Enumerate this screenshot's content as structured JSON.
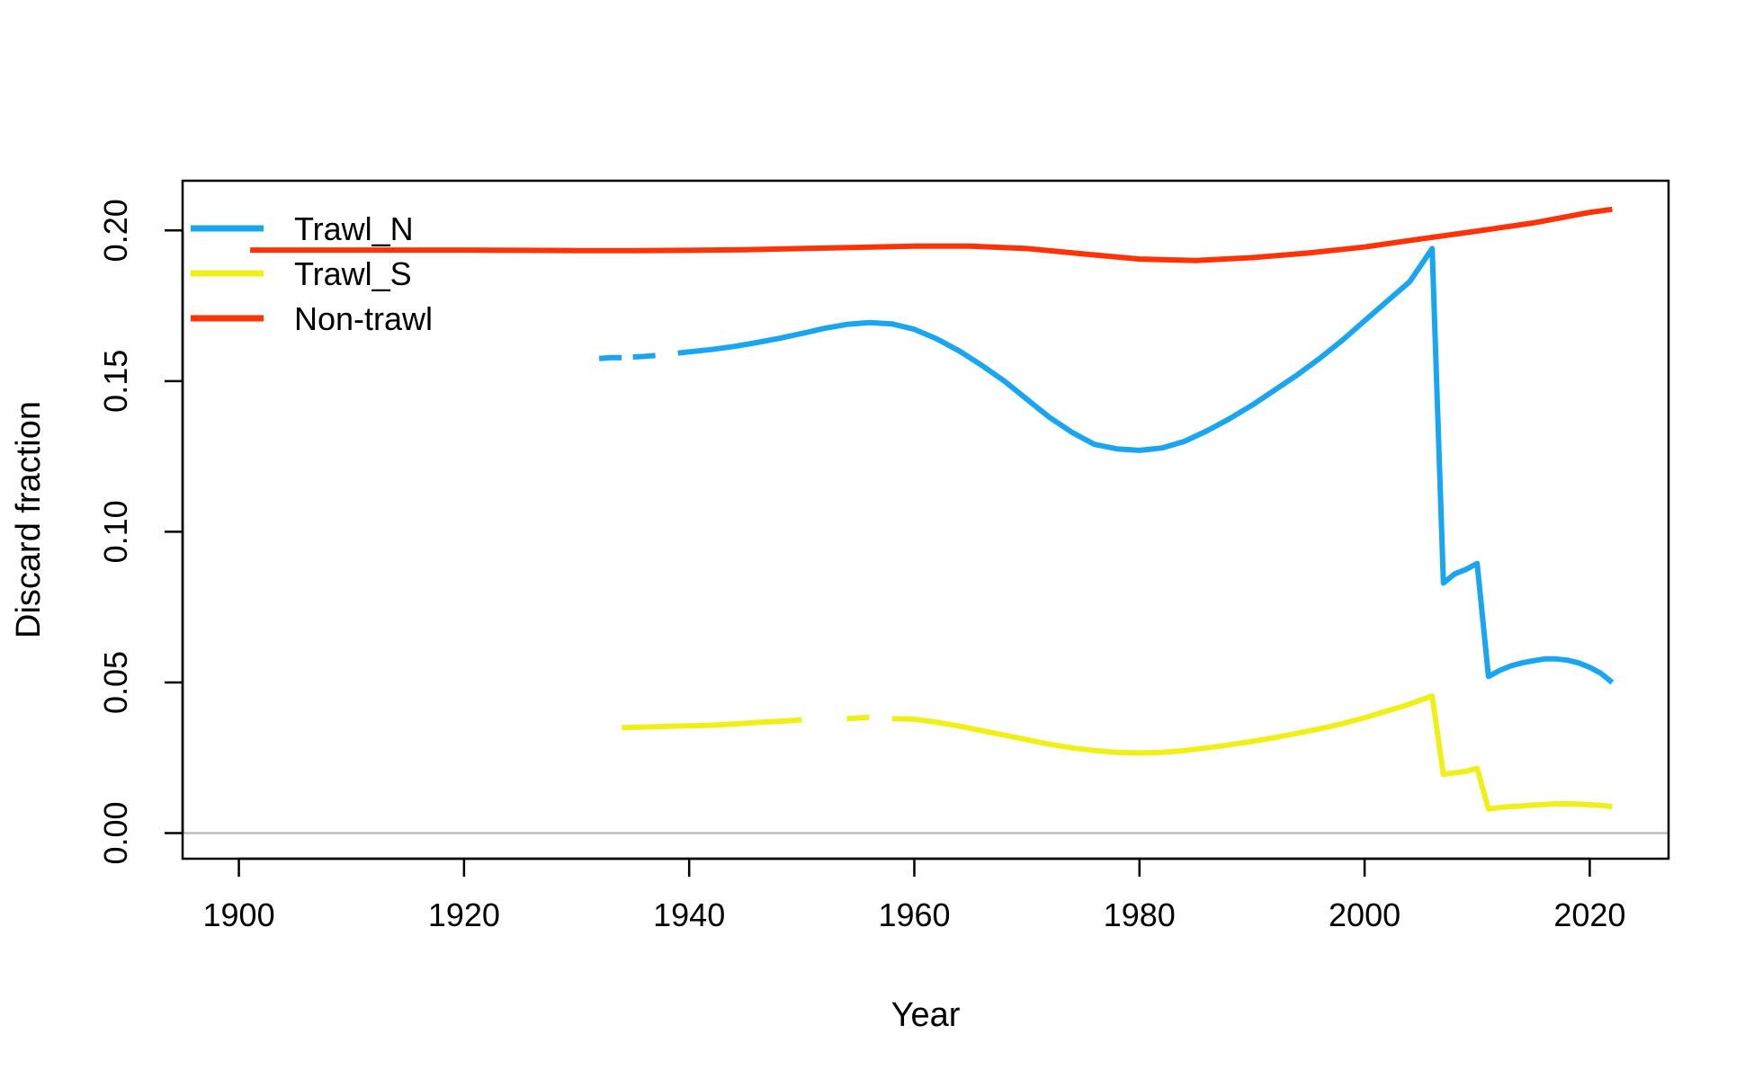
{
  "chart_data": {
    "type": "line",
    "xlabel": "Year",
    "ylabel": "Discard fraction",
    "xlim": [
      1895,
      2027
    ],
    "ylim": [
      -0.0085,
      0.2165
    ],
    "x_ticks": [
      1900,
      1920,
      1940,
      1960,
      1980,
      2000,
      2020
    ],
    "x_tick_labels": [
      "1900",
      "1920",
      "1940",
      "1960",
      "1980",
      "2000",
      "2020"
    ],
    "y_ticks": [
      0,
      0.05,
      0.1,
      0.15,
      0.2
    ],
    "y_tick_labels": [
      "0.00",
      "0.05",
      "0.10",
      "0.15",
      "0.20"
    ],
    "reference_line": {
      "y": 0,
      "color": "#bebebe"
    },
    "grid": false,
    "legend_position": "top-left",
    "series": [
      {
        "name": "Trawl_N",
        "color": "#1aa5f0",
        "segments": [
          {
            "x": [
              1932,
              1933,
              1934
            ],
            "y": [
              0.1575,
              0.1578,
              0.1578
            ]
          },
          {
            "x": [
              1935,
              1936,
              1937
            ],
            "y": [
              0.158,
              0.1582,
              0.1585
            ]
          },
          {
            "x": [
              1939,
              1940,
              1942,
              1944,
              1946,
              1948,
              1950,
              1952,
              1954,
              1956,
              1958,
              1960,
              1962,
              1964,
              1966,
              1968,
              1970,
              1972,
              1974,
              1976,
              1978,
              1980,
              1982,
              1984,
              1986,
              1988,
              1990,
              1992,
              1994,
              1996,
              1998,
              2000,
              2002,
              2004,
              2006,
              2007,
              2008,
              2009,
              2010,
              2011,
              2012,
              2013,
              2014,
              2015,
              2016,
              2017,
              2018,
              2019,
              2020,
              2021,
              2022
            ],
            "y": [
              0.1593,
              0.1597,
              0.1605,
              0.1615,
              0.1628,
              0.1642,
              0.1658,
              0.1675,
              0.1688,
              0.1694,
              0.169,
              0.1672,
              0.164,
              0.16,
              0.1552,
              0.15,
              0.144,
              0.138,
              0.133,
              0.129,
              0.1275,
              0.127,
              0.1278,
              0.13,
              0.1335,
              0.1375,
              0.142,
              0.147,
              0.152,
              0.1575,
              0.1635,
              0.17,
              0.1765,
              0.183,
              0.194,
              0.083,
              0.086,
              0.0875,
              0.0895,
              0.052,
              0.054,
              0.0555,
              0.0565,
              0.0572,
              0.0578,
              0.0578,
              0.0574,
              0.0565,
              0.055,
              0.053,
              0.05
            ]
          }
        ]
      },
      {
        "name": "Trawl_S",
        "color": "#f0f018",
        "segments": [
          {
            "x": [
              1934,
              1936,
              1938,
              1940,
              1942,
              1944,
              1946,
              1948,
              1950
            ],
            "y": [
              0.035,
              0.0352,
              0.0354,
              0.0356,
              0.0358,
              0.0362,
              0.0367,
              0.0371,
              0.0376
            ]
          },
          {
            "x": [
              1954,
              1955,
              1956
            ],
            "y": [
              0.038,
              0.0382,
              0.0384
            ]
          },
          {
            "x": [
              1958,
              1960,
              1962,
              1964,
              1966,
              1968,
              1970,
              1972,
              1974,
              1976,
              1978,
              1980,
              1982,
              1984,
              1986,
              1988,
              1990,
              1992,
              1994,
              1996,
              1998,
              2000,
              2002,
              2004,
              2006,
              2007,
              2008,
              2009,
              2010,
              2011,
              2012,
              2013,
              2014,
              2015,
              2016,
              2017,
              2018,
              2019,
              2020,
              2021,
              2022
            ],
            "y": [
              0.038,
              0.0378,
              0.0368,
              0.0355,
              0.034,
              0.0325,
              0.031,
              0.0295,
              0.0283,
              0.0274,
              0.0268,
              0.0266,
              0.0268,
              0.0274,
              0.0283,
              0.0293,
              0.0304,
              0.0317,
              0.0331,
              0.0346,
              0.0363,
              0.0383,
              0.0405,
              0.0428,
              0.0455,
              0.0195,
              0.02,
              0.0205,
              0.0215,
              0.008,
              0.0085,
              0.0088,
              0.009,
              0.0093,
              0.0095,
              0.0097,
              0.0097,
              0.0096,
              0.0094,
              0.0092,
              0.0088
            ]
          }
        ]
      },
      {
        "name": "Non-trawl",
        "color": "#ff3307",
        "segments": [
          {
            "x": [
              1901,
              1910,
              1920,
              1930,
              1935,
              1940,
              1945,
              1950,
              1955,
              1960,
              1965,
              1970,
              1975,
              1980,
              1985,
              1990,
              1995,
              2000,
              2005,
              2010,
              2015,
              2020,
              2022
            ],
            "y": [
              0.1935,
              0.1935,
              0.1935,
              0.1933,
              0.1933,
              0.1934,
              0.1936,
              0.194,
              0.1944,
              0.1948,
              0.1948,
              0.194,
              0.1922,
              0.1905,
              0.19,
              0.191,
              0.1925,
              0.1945,
              0.1972,
              0.1998,
              0.2025,
              0.206,
              0.207
            ]
          }
        ]
      }
    ]
  }
}
